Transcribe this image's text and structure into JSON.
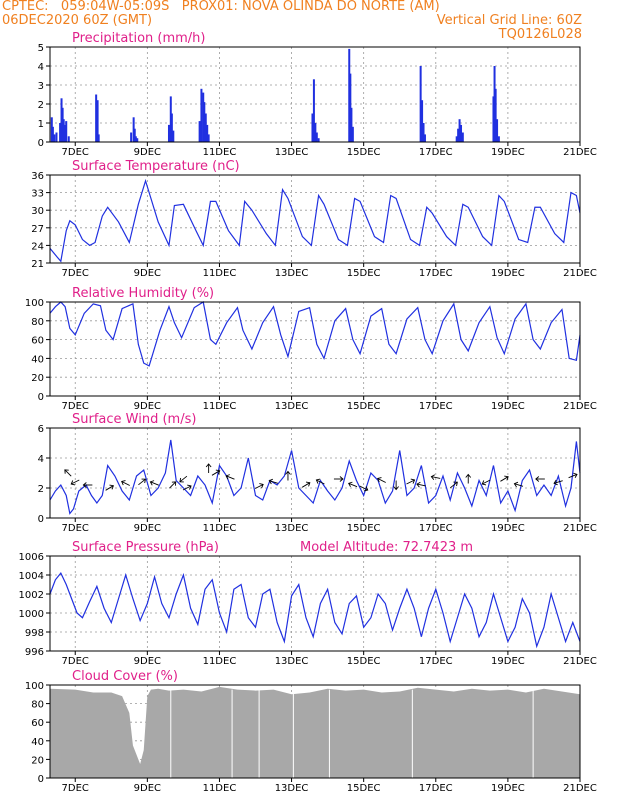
{
  "header": {
    "line1_left": "CPTEC:   059:04W-05:09S   PROX01: NOVA OLINDA DO NORTE (AM)",
    "line2_left": "06DEC2020 60Z (GMT)",
    "line2_right": "Vertical Grid Line: 60Z",
    "line3_right": "TQ0126L028"
  },
  "colors": {
    "header": "#f08020",
    "title": "#e0208a",
    "series": "#2030e0",
    "cloud": "#a8a8a8",
    "grid": "#999999",
    "axis": "#000000"
  },
  "x_axis": {
    "ticks": [
      "7DEC",
      "9DEC",
      "11DEC",
      "13DEC",
      "15DEC",
      "17DEC",
      "19DEC",
      "21DEC"
    ],
    "tick_days": [
      7,
      9,
      11,
      13,
      15,
      17,
      19,
      21
    ],
    "range_days": [
      6.3,
      21
    ]
  },
  "chart_data": [
    {
      "type": "bar",
      "title": "Precipitation (mm/h)",
      "ylim": [
        0,
        5
      ],
      "yticks": [
        "0",
        "1",
        "2",
        "3",
        "4",
        "5"
      ],
      "x_day": [
        6.35,
        6.38,
        6.42,
        6.48,
        6.58,
        6.62,
        6.65,
        6.68,
        6.72,
        6.75,
        6.82,
        7.58,
        7.62,
        7.65,
        8.55,
        8.62,
        8.65,
        8.68,
        8.72,
        9.6,
        9.65,
        9.68,
        9.72,
        10.45,
        10.5,
        10.55,
        10.58,
        10.62,
        10.66,
        10.7,
        13.58,
        13.62,
        13.66,
        13.7,
        13.75,
        14.6,
        14.63,
        14.66,
        14.7,
        16.58,
        16.62,
        16.66,
        16.7,
        17.58,
        17.62,
        17.66,
        17.7,
        17.75,
        18.6,
        18.63,
        18.66,
        18.7,
        18.75
      ],
      "values": [
        1.3,
        0.8,
        0.4,
        0.5,
        1.0,
        2.3,
        1.8,
        1.2,
        0.9,
        1.1,
        0.3,
        2.5,
        2.2,
        0.4,
        0.5,
        1.3,
        0.7,
        0.3,
        0.2,
        0.9,
        2.4,
        1.5,
        0.6,
        1.1,
        2.8,
        2.6,
        2.1,
        1.5,
        0.9,
        0.4,
        1.5,
        3.3,
        1.0,
        0.5,
        0.2,
        4.9,
        3.6,
        1.8,
        0.8,
        4.0,
        2.2,
        1.0,
        0.4,
        0.3,
        0.7,
        1.2,
        0.9,
        0.5,
        2.4,
        4.0,
        2.8,
        1.2,
        0.3
      ]
    },
    {
      "type": "line",
      "title": "Surface Temperature (nC)",
      "ylim": [
        21,
        36
      ],
      "yticks": [
        "21",
        "24",
        "27",
        "30",
        "33",
        "36"
      ],
      "x_day": [
        6.3,
        6.5,
        6.6,
        6.75,
        6.85,
        7.0,
        7.2,
        7.4,
        7.55,
        7.75,
        7.9,
        8.2,
        8.5,
        8.75,
        8.95,
        9.3,
        9.6,
        9.75,
        10.0,
        10.35,
        10.55,
        10.75,
        10.9,
        11.25,
        11.55,
        11.7,
        11.9,
        12.3,
        12.55,
        12.75,
        12.9,
        13.3,
        13.55,
        13.75,
        13.9,
        14.3,
        14.55,
        14.75,
        14.9,
        15.3,
        15.55,
        15.75,
        15.9,
        16.3,
        16.55,
        16.75,
        16.9,
        17.3,
        17.55,
        17.75,
        17.9,
        18.3,
        18.55,
        18.75,
        18.9,
        19.3,
        19.55,
        19.75,
        19.9,
        20.3,
        20.55,
        20.75,
        20.9,
        21.0
      ],
      "values": [
        23.5,
        22.0,
        21.3,
        26.5,
        28.2,
        27.5,
        25.0,
        24.0,
        24.5,
        29.0,
        30.5,
        28.0,
        24.5,
        31.0,
        35.0,
        28.0,
        24.0,
        30.8,
        31.0,
        26.5,
        24.0,
        31.5,
        31.5,
        26.5,
        24.0,
        31.5,
        30.0,
        26.0,
        24.0,
        33.5,
        32.0,
        25.5,
        24.0,
        32.5,
        31.0,
        25.0,
        24.0,
        32.0,
        31.5,
        25.5,
        24.5,
        32.5,
        32.0,
        25.0,
        24.0,
        30.5,
        29.5,
        25.5,
        24.0,
        31.0,
        30.5,
        25.5,
        24.0,
        32.5,
        31.5,
        25.0,
        24.5,
        30.5,
        30.5,
        26.0,
        24.5,
        33.0,
        32.5,
        29.5
      ]
    },
    {
      "type": "line",
      "title": "Relative Humidity (%)",
      "ylim": [
        0,
        100
      ],
      "yticks": [
        "0",
        "20",
        "40",
        "60",
        "80",
        "100"
      ],
      "x_day": [
        6.3,
        6.45,
        6.6,
        6.72,
        6.85,
        7.0,
        7.25,
        7.5,
        7.7,
        7.85,
        8.05,
        8.3,
        8.6,
        8.75,
        8.9,
        9.05,
        9.35,
        9.6,
        9.75,
        9.95,
        10.3,
        10.55,
        10.75,
        10.9,
        11.2,
        11.5,
        11.65,
        11.9,
        12.2,
        12.5,
        12.7,
        12.9,
        13.2,
        13.5,
        13.7,
        13.9,
        14.2,
        14.5,
        14.7,
        14.9,
        15.2,
        15.5,
        15.7,
        15.9,
        16.2,
        16.5,
        16.7,
        16.9,
        17.2,
        17.5,
        17.7,
        17.9,
        18.2,
        18.5,
        18.7,
        18.9,
        19.2,
        19.5,
        19.7,
        19.9,
        20.2,
        20.5,
        20.7,
        20.9,
        21.0
      ],
      "values": [
        88,
        95,
        100,
        95,
        72,
        65,
        88,
        98,
        96,
        70,
        60,
        93,
        98,
        55,
        35,
        32,
        70,
        95,
        78,
        62,
        94,
        100,
        60,
        55,
        78,
        94,
        70,
        50,
        78,
        95,
        65,
        42,
        90,
        94,
        55,
        40,
        80,
        93,
        60,
        45,
        85,
        93,
        55,
        45,
        82,
        94,
        60,
        45,
        80,
        98,
        60,
        48,
        78,
        95,
        62,
        45,
        82,
        98,
        60,
        50,
        78,
        92,
        40,
        38,
        65
      ]
    },
    {
      "type": "line",
      "title": "Surface Wind (m/s)",
      "ylim": [
        0,
        6
      ],
      "yticks": [
        "0",
        "2",
        "4",
        "6"
      ],
      "x_day": [
        6.3,
        6.45,
        6.6,
        6.75,
        6.85,
        6.95,
        7.1,
        7.3,
        7.45,
        7.6,
        7.75,
        7.9,
        8.1,
        8.3,
        8.5,
        8.7,
        8.9,
        9.1,
        9.3,
        9.5,
        9.65,
        9.8,
        10.0,
        10.2,
        10.4,
        10.6,
        10.8,
        11.0,
        11.2,
        11.4,
        11.6,
        11.8,
        12.0,
        12.2,
        12.4,
        12.6,
        12.8,
        13.0,
        13.2,
        13.4,
        13.6,
        13.8,
        14.0,
        14.2,
        14.4,
        14.6,
        14.8,
        15.0,
        15.2,
        15.4,
        15.6,
        15.8,
        16.0,
        16.2,
        16.4,
        16.6,
        16.8,
        17.0,
        17.2,
        17.4,
        17.6,
        17.8,
        18.0,
        18.2,
        18.4,
        18.6,
        18.8,
        19.0,
        19.2,
        19.4,
        19.6,
        19.8,
        20.0,
        20.2,
        20.4,
        20.6,
        20.75,
        20.9,
        21.0
      ],
      "values": [
        1.2,
        1.8,
        2.2,
        1.5,
        0.3,
        0.6,
        1.8,
        2.2,
        1.5,
        1.0,
        1.5,
        3.5,
        2.8,
        1.8,
        1.2,
        2.8,
        3.2,
        1.5,
        2.0,
        3.0,
        5.2,
        2.5,
        2.0,
        1.5,
        2.8,
        2.2,
        1.0,
        3.5,
        2.8,
        1.5,
        2.0,
        4.0,
        1.5,
        1.2,
        2.5,
        2.2,
        2.8,
        4.5,
        2.0,
        1.5,
        1.0,
        2.5,
        1.8,
        1.2,
        2.0,
        3.8,
        2.5,
        1.5,
        3.0,
        2.5,
        1.0,
        1.8,
        4.5,
        1.5,
        2.0,
        3.5,
        1.0,
        1.5,
        2.8,
        1.2,
        3.0,
        2.0,
        0.8,
        2.5,
        1.5,
        3.5,
        1.0,
        1.8,
        0.5,
        2.5,
        3.2,
        1.5,
        2.2,
        1.5,
        2.8,
        0.8,
        2.0,
        5.1,
        3.0
      ]
    },
    {
      "type": "line",
      "title": "Surface Pressure (hPa)",
      "annotation": "Model Altitude: 72.7423 m",
      "ylim": [
        996,
        1006
      ],
      "yticks": [
        "996",
        "998",
        "1000",
        "1002",
        "1004",
        "1006"
      ],
      "x_day": [
        6.3,
        6.45,
        6.6,
        6.75,
        6.9,
        7.05,
        7.2,
        7.4,
        7.6,
        7.8,
        8.0,
        8.2,
        8.4,
        8.6,
        8.8,
        9.0,
        9.2,
        9.4,
        9.6,
        9.8,
        10.0,
        10.2,
        10.4,
        10.6,
        10.8,
        11.0,
        11.2,
        11.4,
        11.6,
        11.8,
        12.0,
        12.2,
        12.4,
        12.6,
        12.8,
        13.0,
        13.2,
        13.4,
        13.6,
        13.8,
        14.0,
        14.2,
        14.4,
        14.6,
        14.8,
        15.0,
        15.2,
        15.4,
        15.6,
        15.8,
        16.0,
        16.2,
        16.4,
        16.6,
        16.8,
        17.0,
        17.2,
        17.4,
        17.6,
        17.8,
        18.0,
        18.2,
        18.4,
        18.6,
        18.8,
        19.0,
        19.2,
        19.4,
        19.6,
        19.8,
        20.0,
        20.2,
        20.4,
        20.6,
        20.8,
        21.0
      ],
      "values": [
        1002.0,
        1003.5,
        1004.2,
        1003.0,
        1001.5,
        1000.0,
        999.5,
        1001.2,
        1002.8,
        1000.5,
        999.0,
        1001.5,
        1004.0,
        1001.5,
        999.2,
        1001.0,
        1003.8,
        1001.0,
        999.5,
        1002.0,
        1004.0,
        1000.5,
        998.8,
        1002.5,
        1003.5,
        1000.0,
        998.0,
        1002.5,
        1003.0,
        999.5,
        998.5,
        1002.0,
        1002.5,
        999.0,
        997.0,
        1001.8,
        1003.0,
        999.5,
        997.5,
        1001.0,
        1002.5,
        999.0,
        997.8,
        1001.0,
        1001.8,
        998.5,
        999.5,
        1002.0,
        1001.0,
        998.2,
        1000.5,
        1002.5,
        1000.5,
        997.5,
        1000.5,
        1002.5,
        1000.0,
        997.0,
        999.5,
        1002.0,
        1000.5,
        997.5,
        999.0,
        1002.0,
        999.5,
        997.0,
        998.5,
        1001.5,
        1000.0,
        996.5,
        998.5,
        1002.0,
        999.5,
        997.0,
        999.0,
        997.0
      ]
    },
    {
      "type": "area",
      "title": "Cloud Cover (%)",
      "ylim": [
        0,
        100
      ],
      "yticks": [
        "0",
        "20",
        "40",
        "60",
        "80",
        "100"
      ],
      "x_day": [
        6.3,
        7.0,
        7.5,
        8.0,
        8.3,
        8.5,
        8.6,
        8.7,
        8.8,
        8.9,
        9.0,
        9.1,
        9.3,
        9.6,
        10.0,
        10.5,
        11.0,
        11.5,
        12.0,
        12.5,
        13.0,
        13.5,
        14.0,
        14.5,
        15.0,
        15.5,
        16.0,
        16.5,
        17.0,
        17.5,
        18.0,
        18.5,
        19.0,
        19.5,
        20.0,
        20.5,
        21.0
      ],
      "values": [
        96,
        95,
        92,
        92,
        88,
        70,
        35,
        25,
        15,
        30,
        88,
        95,
        96,
        94,
        95,
        93,
        98,
        95,
        94,
        95,
        90,
        92,
        96,
        94,
        95,
        92,
        93,
        97,
        95,
        93,
        96,
        94,
        95,
        92,
        96,
        93,
        90
      ]
    }
  ]
}
